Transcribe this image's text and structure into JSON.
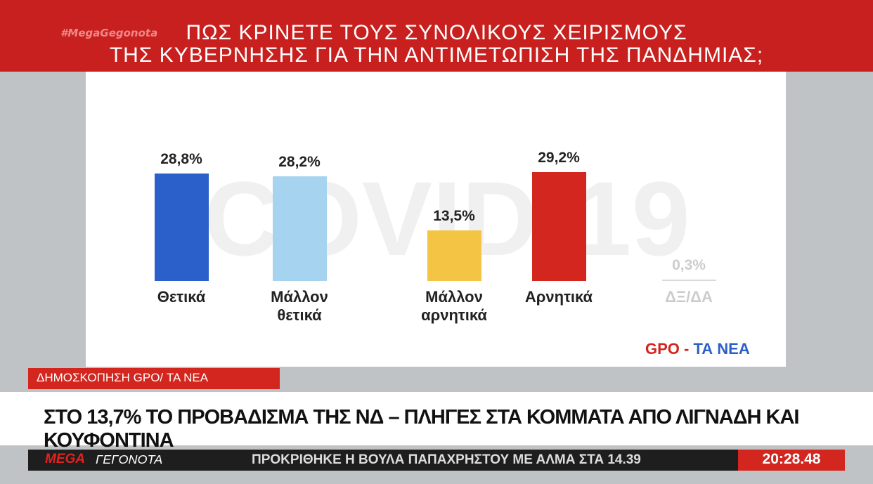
{
  "hashtag": "#MegaGegonota",
  "watermark": "COVID-19",
  "chart_data": {
    "type": "bar",
    "title": [
      "ΠΩΣ ΚΡΙΝΕΤΕ ΤΟΥΣ ΣΥΝΟΛΙΚΟΥΣ ΧΕΙΡΙΣΜΟΥΣ",
      "ΤΗΣ ΚΥΒΕΡΝΗΣΗΣ ΓΙΑ ΤΗΝ ΑΝΤΙΜΕΤΩΠΙΣΗ ΤΗΣ ΠΑΝΔΗΜΙΑΣ;"
    ],
    "categories": [
      "Θετικά",
      "Μάλλον θετικά",
      "Μάλλον αρνητικά",
      "Αρνητικά",
      "ΔΞ/ΔΑ"
    ],
    "values": [
      28.8,
      28.2,
      13.5,
      29.2,
      0.3
    ],
    "value_labels": [
      "28,8%",
      "28,2%",
      "13,5%",
      "29,2%",
      "0,3%"
    ],
    "colors": [
      "#2b5fca",
      "#a6d3ef",
      "#f4c445",
      "#d2261e",
      "#d9d9d9"
    ]
  },
  "source": {
    "gpo": "GPO",
    "dash": "-",
    "tanea": "ΤΑ ΝΕΑ"
  },
  "banner": "ΔΗΜΟΣΚΟΠΗΣΗ GPO/ ΤΑ ΝΕΑ",
  "headline": "ΣΤΟ 13,7% ΤΟ ΠΡΟΒΑΔΙΣΜΑ ΤΗΣ ΝΔ – ΠΛΗΓΕΣ ΣΤΑ ΚΟΜΜΑΤΑ ΑΠΟ ΛΙΓΝΑΔΗ ΚΑΙ ΚΟΥΦΟΝΤΙΝΑ",
  "ticker": {
    "logo_mega": "MEGA",
    "logo_rest": "ΓΕΓΟΝΟΤΑ",
    "text": "ΠΡΟΚΡΙΘΗΚΕ Η ΒΟΥΛΑ ΠΑΠΑΧΡΗΣΤΟΥ ΜΕ ΑΛΜΑ ΣΤΑ 14.39"
  },
  "clock": "20:28.48"
}
